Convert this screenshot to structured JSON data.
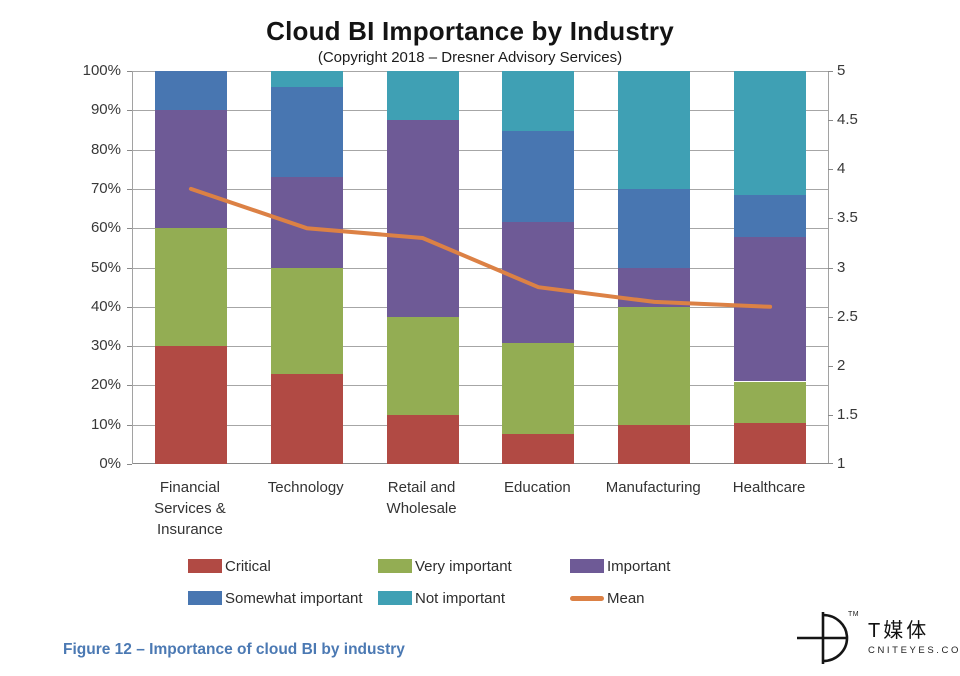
{
  "title": "Cloud BI Importance by Industry",
  "subtitle": "(Copyright 2018 – Dresner Advisory Services)",
  "caption": "Figure 12 – Importance of cloud BI by industry",
  "logo": {
    "brand": "T媒体",
    "domain": "CNITEYES.COM",
    "tm": "TM"
  },
  "chart_data": {
    "type": "bar",
    "stacked": true,
    "percent_stacked": true,
    "title": "Cloud BI Importance by Industry",
    "subtitle": "(Copyright 2018 – Dresner Advisory Services)",
    "categories": [
      "Financial Services & Insurance",
      "Technology",
      "Retail and Wholesale",
      "Education",
      "Manufacturing",
      "Healthcare"
    ],
    "category_labels": [
      "Financial\nServices &\nInsurance",
      "Technology",
      "Retail and\nWholesale",
      "Education",
      "Manufacturing",
      "Healthcare"
    ],
    "series": [
      {
        "name": "Critical",
        "color": "#B14A44",
        "values": [
          30,
          23,
          12.5,
          7.7,
          10,
          10.5
        ]
      },
      {
        "name": "Very important",
        "color": "#93AD53",
        "values": [
          30,
          27,
          25,
          23.1,
          30,
          10.5
        ]
      },
      {
        "name": "Important",
        "color": "#6E5A96",
        "values": [
          30,
          23,
          50,
          30.8,
          10,
          36.8
        ]
      },
      {
        "name": "Somewhat important",
        "color": "#4876B1",
        "values": [
          10,
          23,
          0,
          23.1,
          20,
          10.6
        ]
      },
      {
        "name": "Not important",
        "color": "#3FA0B4",
        "values": [
          0,
          4,
          12.5,
          15.3,
          30,
          31.6
        ]
      }
    ],
    "mean": {
      "name": "Mean",
      "color": "#DC8145",
      "axis": "right",
      "values": [
        3.8,
        3.4,
        3.3,
        2.8,
        2.65,
        2.6
      ]
    },
    "y_left": {
      "min": 0,
      "max": 100,
      "step": 10,
      "ticks": [
        "0%",
        "10%",
        "20%",
        "30%",
        "40%",
        "50%",
        "60%",
        "70%",
        "80%",
        "90%",
        "100%"
      ]
    },
    "y_right": {
      "min": 1,
      "max": 5,
      "step": 0.5,
      "ticks": [
        "1",
        "1.5",
        "2",
        "2.5",
        "3",
        "3.5",
        "4",
        "4.5",
        "5"
      ]
    },
    "grid": "horizontal",
    "legend_position": "bottom"
  }
}
